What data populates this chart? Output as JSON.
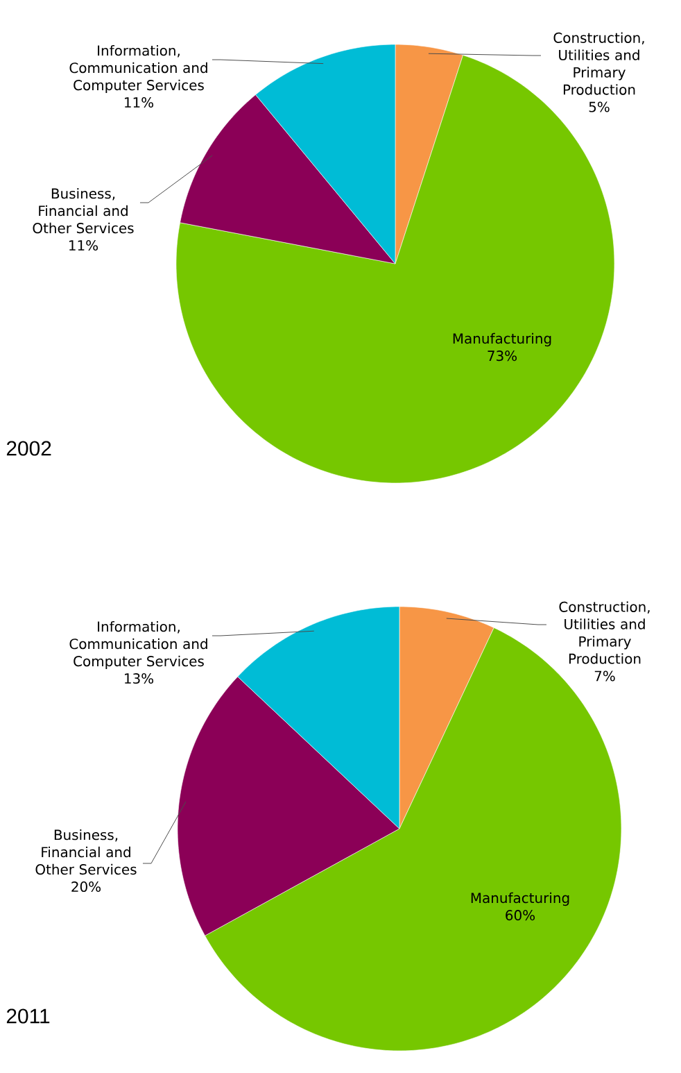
{
  "chart_data": [
    {
      "type": "pie",
      "title": "2002",
      "categories": [
        "Construction, Utilities and Primary Production",
        "Manufacturing",
        "Business, Financial and Other Services",
        "Information, Communication and Computer Services"
      ],
      "values": [
        5,
        73,
        11,
        11
      ],
      "value_labels": [
        "5%",
        "73%",
        "11%",
        "11%"
      ],
      "colors": [
        "#f79646",
        "#76c700",
        "#8b0057",
        "#00bcd6"
      ]
    },
    {
      "type": "pie",
      "title": "2011",
      "categories": [
        "Construction, Utilities and Primary Production",
        "Manufacturing",
        "Business, Financial and Other Services",
        "Information, Communication and Computer Services"
      ],
      "values": [
        7,
        60,
        20,
        13
      ],
      "value_labels": [
        "7%",
        "60%",
        "20%",
        "13%"
      ],
      "colors": [
        "#f79646",
        "#76c700",
        "#8b0057",
        "#00bcd6"
      ]
    }
  ]
}
